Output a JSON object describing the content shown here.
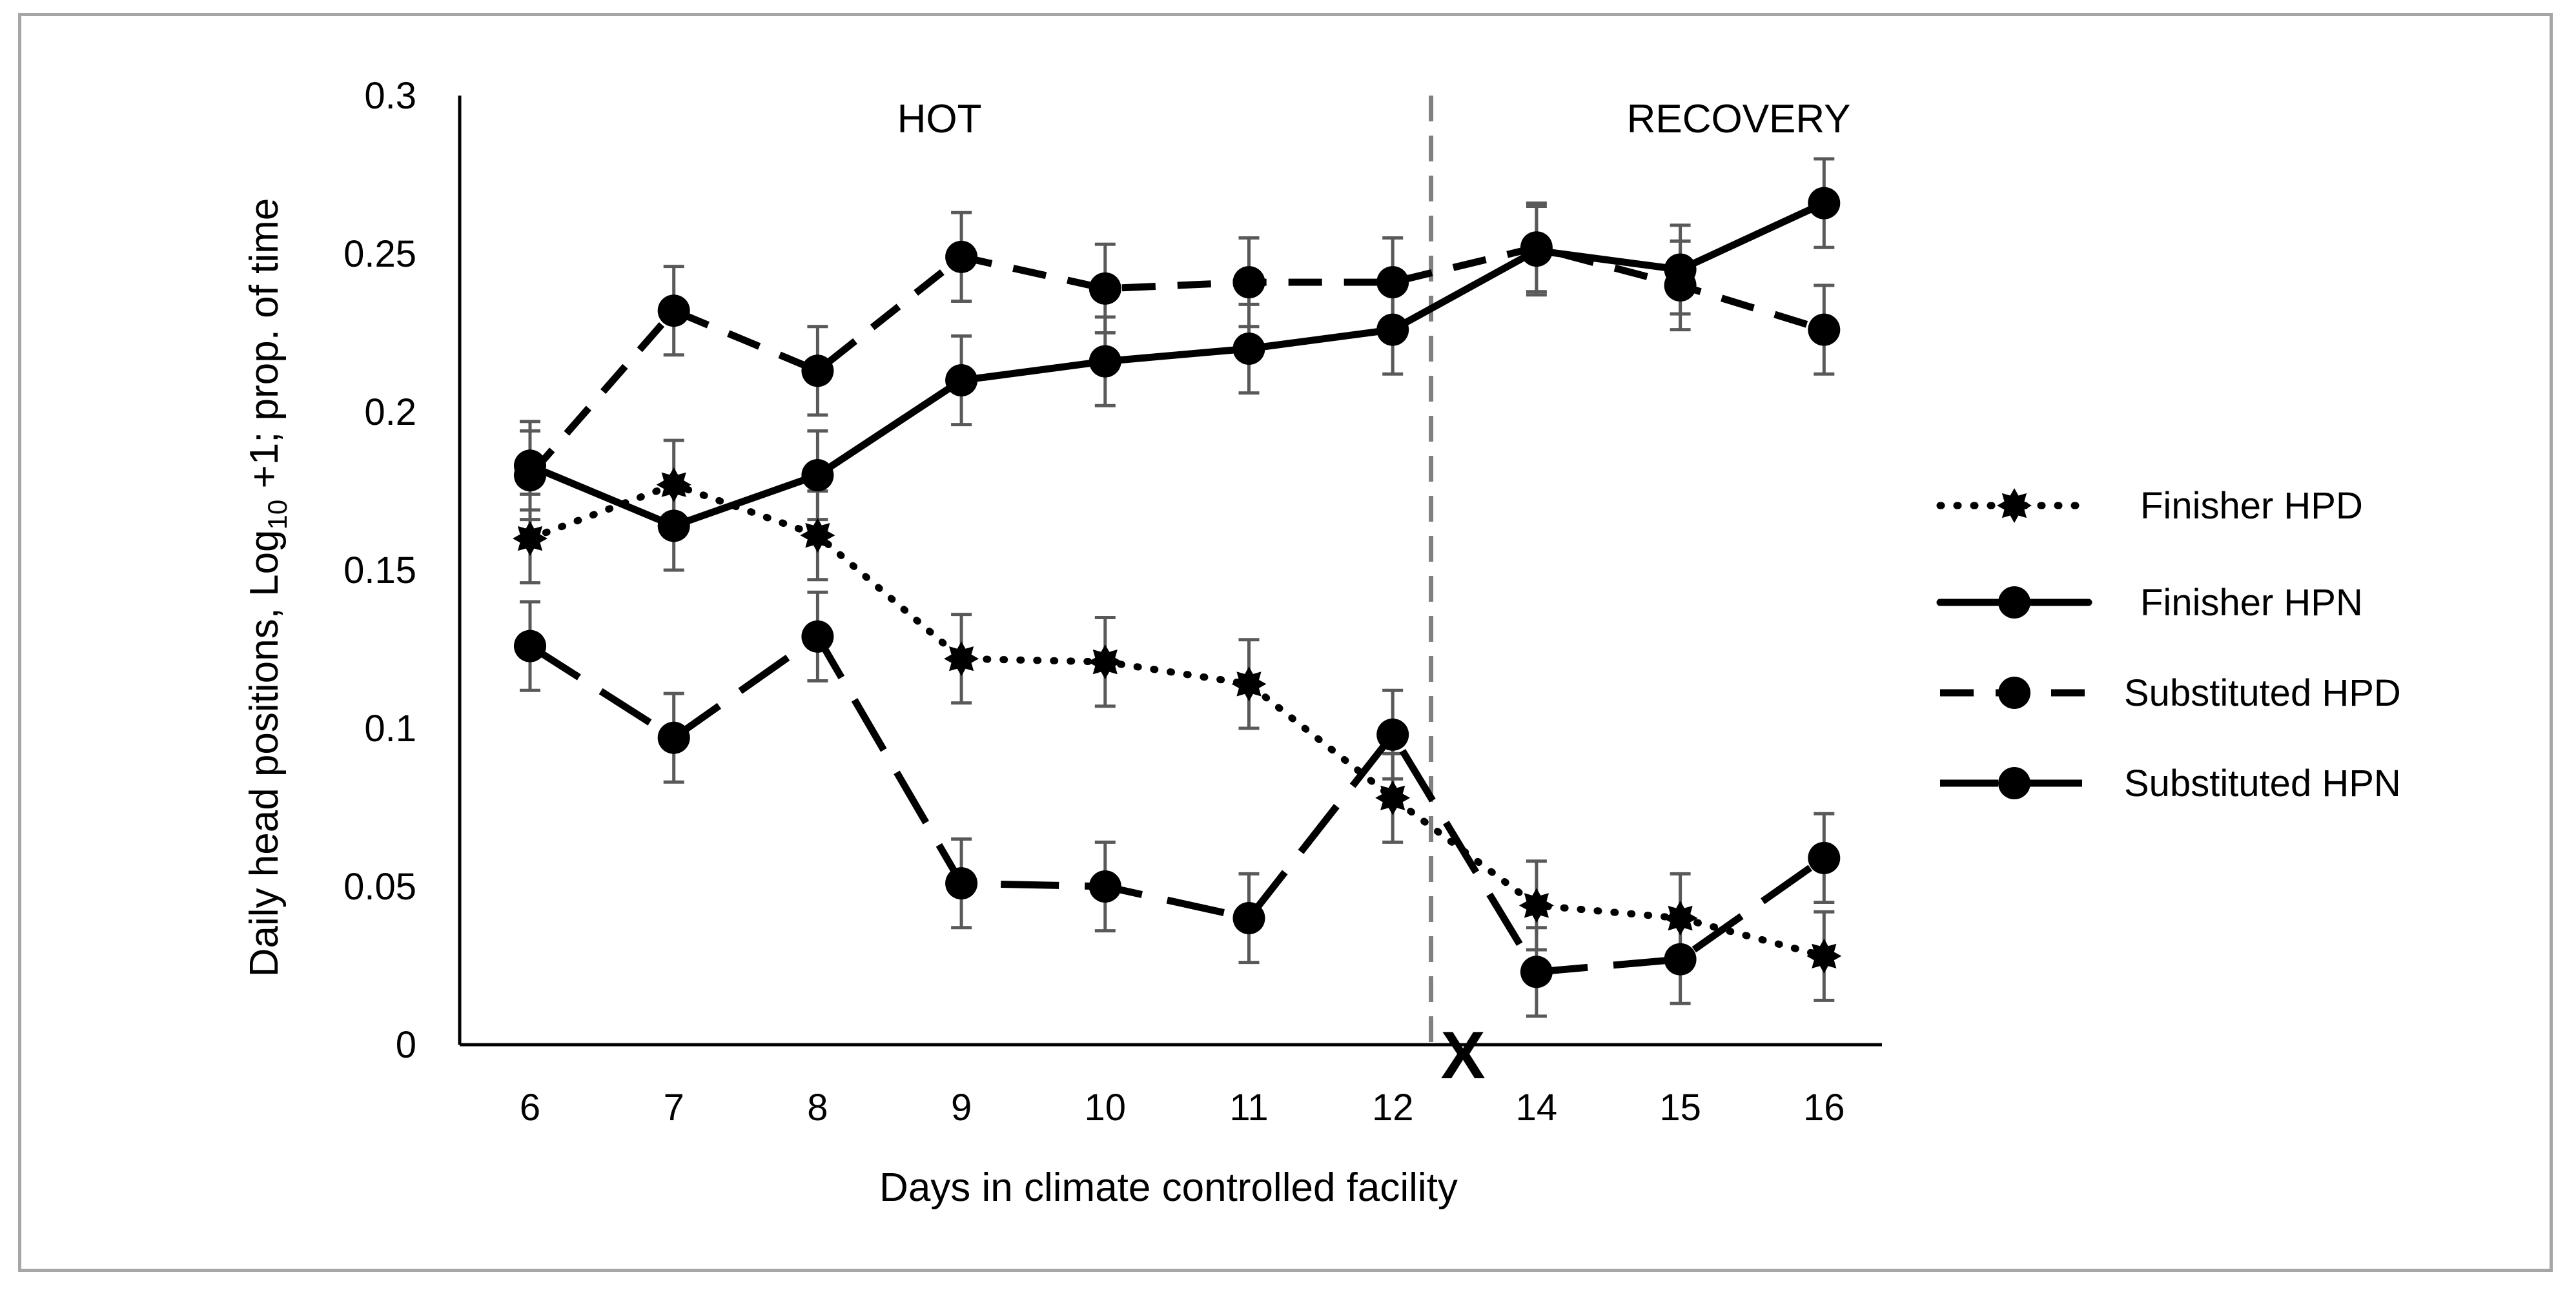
{
  "chart_data": {
    "type": "line",
    "title": "",
    "xlabel": "Days in climate controlled facility",
    "ylabel_main": "Daily head positions, Log",
    "ylabel_sub": "10",
    "ylabel_rest": " +1; prop. of time",
    "categories": [
      "6",
      "7",
      "8",
      "9",
      "10",
      "11",
      "12",
      "14",
      "15",
      "16"
    ],
    "ylim": [
      0,
      0.3
    ],
    "yticks": [
      "0",
      "0.05",
      "0.1",
      "0.15",
      "0.2",
      "0.25",
      "0.3"
    ],
    "yticks_values": [
      0,
      0.05,
      0.1,
      0.15,
      0.2,
      0.25,
      0.3
    ],
    "grid": false,
    "legend_position": "right",
    "regions": [
      {
        "label": "HOT"
      },
      {
        "label": "RECOVERY"
      }
    ],
    "gap_marker": "X",
    "series": [
      {
        "name": "Finisher HPD",
        "style": "dotted",
        "marker": "star",
        "values": [
          0.16,
          0.177,
          0.161,
          0.122,
          0.121,
          0.114,
          0.078,
          0.044,
          0.04,
          0.028
        ],
        "errors": [
          0.014,
          0.014,
          0.014,
          0.014,
          0.014,
          0.014,
          0.014,
          0.014,
          0.014,
          0.014
        ]
      },
      {
        "name": "Finisher HPN",
        "style": "solid",
        "marker": "circle",
        "values": [
          0.183,
          0.164,
          0.18,
          0.21,
          0.216,
          0.22,
          0.226,
          0.251,
          0.245,
          0.266
        ],
        "errors": [
          0.014,
          0.014,
          0.014,
          0.014,
          0.014,
          0.014,
          0.014,
          0.014,
          0.014,
          0.014
        ]
      },
      {
        "name": "Substituted  HPD",
        "style": "dashed",
        "marker": "circle",
        "values": [
          0.18,
          0.232,
          0.213,
          0.249,
          0.239,
          0.241,
          0.241,
          0.252,
          0.24,
          0.226
        ],
        "errors": [
          0.014,
          0.014,
          0.014,
          0.014,
          0.014,
          0.014,
          0.014,
          0.014,
          0.014,
          0.014
        ]
      },
      {
        "name": "Substituted HPN",
        "style": "longdash",
        "marker": "circle",
        "values": [
          0.126,
          0.097,
          0.129,
          0.051,
          0.05,
          0.04,
          0.098,
          0.023,
          0.027,
          0.059
        ],
        "errors": [
          0.014,
          0.014,
          0.014,
          0.014,
          0.014,
          0.014,
          0.014,
          0.014,
          0.014,
          0.014
        ]
      }
    ]
  }
}
